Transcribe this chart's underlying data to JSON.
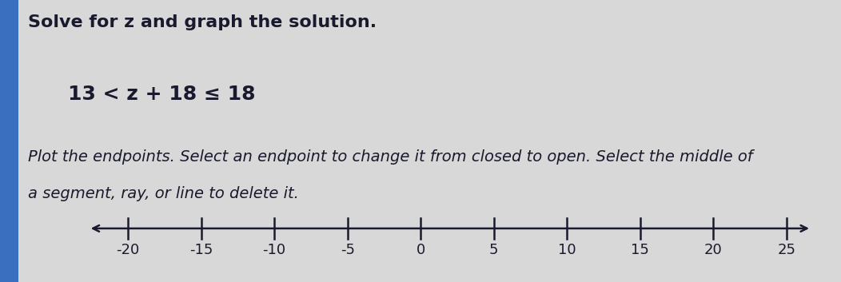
{
  "title": "Solve for z and graph the solution.",
  "equation": "13 < z + 18 ≤ 18",
  "instruction_line1": "Plot the endpoints. Select an endpoint to change it from closed to open. Select the middle of",
  "instruction_line2": "a segment, ray, or line to delete it.",
  "number_line": {
    "ticks": [
      -20,
      -15,
      -10,
      -5,
      0,
      5,
      10,
      15,
      20,
      25
    ],
    "tick_labels": [
      "-20",
      "-15",
      "-10",
      "-5",
      "0",
      "5",
      "10",
      "15",
      "20",
      "25"
    ],
    "xlim_left": -23,
    "xlim_right": 27
  },
  "background_color": "#d8d8d8",
  "left_panel_color": "#3a6fbf",
  "text_color": "#1a1a2e",
  "line_color": "#1a1a2e",
  "title_fontsize": 16,
  "equation_fontsize": 18,
  "instruction_fontsize": 14,
  "tick_fontsize": 13
}
